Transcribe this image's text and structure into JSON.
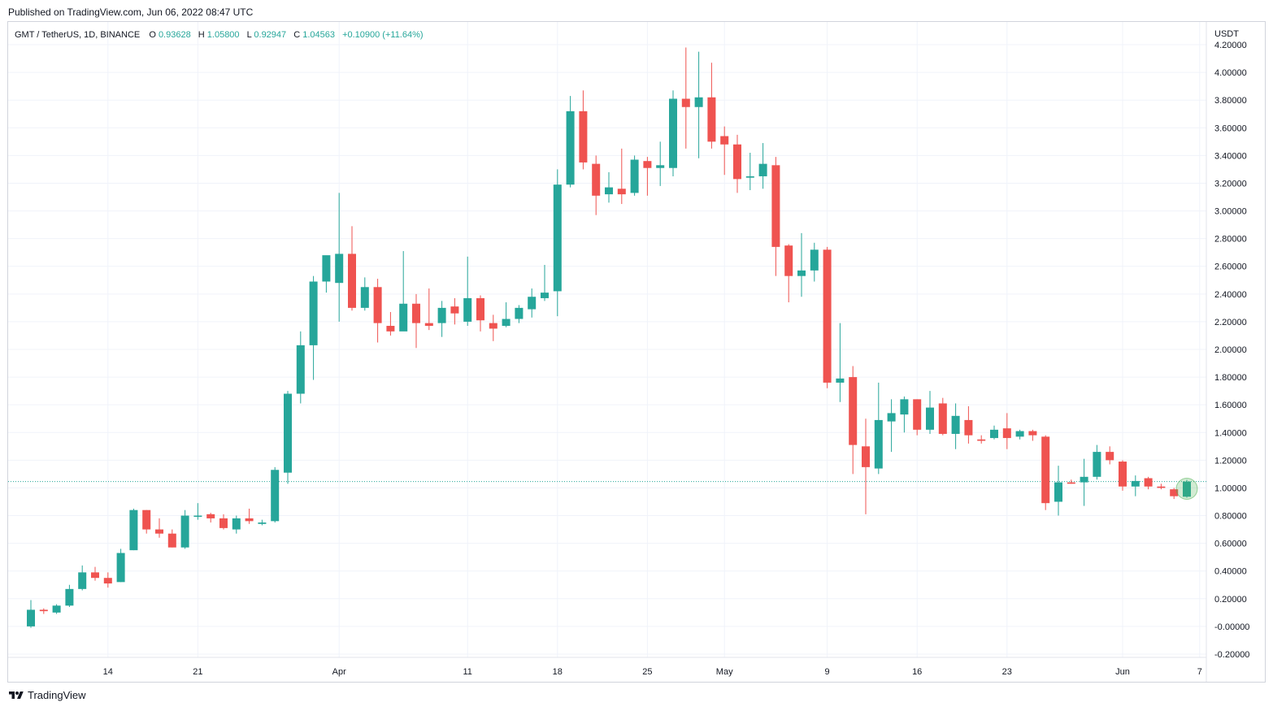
{
  "header": {
    "published": "Published on TradingView.com, Jun 06, 2022 08:47 UTC"
  },
  "legend": {
    "symbol": "GMT / TetherUS, 1D, BINANCE",
    "o_label": "O",
    "o_value": "0.93628",
    "h_label": "H",
    "h_value": "1.05800",
    "l_label": "L",
    "l_value": "0.92947",
    "c_label": "C",
    "c_value": "1.04563",
    "change": "+0.10900 (+11.64%)"
  },
  "footer": {
    "brand": "TradingView"
  },
  "colors": {
    "up": "#26a69a",
    "down": "#ef5350",
    "grid": "#f0f3fa",
    "text": "#131722",
    "highlight": "#4caf50"
  },
  "chart_data": {
    "type": "candlestick",
    "currency_label": "USDT",
    "ylim": [
      -0.3,
      4.3
    ],
    "y_ticks": [
      "4.20000",
      "4.00000",
      "3.80000",
      "3.60000",
      "3.40000",
      "3.20000",
      "3.00000",
      "2.80000",
      "2.60000",
      "2.40000",
      "2.20000",
      "2.00000",
      "1.80000",
      "1.60000",
      "1.40000",
      "1.20000",
      "1.00000",
      "0.80000",
      "0.60000",
      "0.40000",
      "0.20000",
      "-0.00000",
      "-0.20000"
    ],
    "x_ticks": [
      {
        "label": "14",
        "index": 6
      },
      {
        "label": "21",
        "index": 13
      },
      {
        "label": "Apr",
        "index": 24
      },
      {
        "label": "11",
        "index": 34
      },
      {
        "label": "18",
        "index": 41
      },
      {
        "label": "25",
        "index": 48
      },
      {
        "label": "May",
        "index": 54
      },
      {
        "label": "9",
        "index": 62
      },
      {
        "label": "16",
        "index": 69
      },
      {
        "label": "23",
        "index": 76
      },
      {
        "label": "Jun",
        "index": 85
      },
      {
        "label": "7",
        "index": 91
      }
    ],
    "last_price": 1.04563,
    "candles": [
      [
        0.0,
        0.12,
        -0.01,
        0.19
      ],
      [
        0.12,
        0.11,
        0.09,
        0.13
      ],
      [
        0.1,
        0.15,
        0.09,
        0.16
      ],
      [
        0.15,
        0.27,
        0.14,
        0.3
      ],
      [
        0.27,
        0.39,
        0.26,
        0.44
      ],
      [
        0.39,
        0.35,
        0.33,
        0.43
      ],
      [
        0.35,
        0.31,
        0.28,
        0.39
      ],
      [
        0.32,
        0.53,
        0.32,
        0.56
      ],
      [
        0.55,
        0.84,
        0.55,
        0.85
      ],
      [
        0.84,
        0.7,
        0.67,
        0.84
      ],
      [
        0.7,
        0.67,
        0.64,
        0.78
      ],
      [
        0.67,
        0.57,
        0.57,
        0.7
      ],
      [
        0.57,
        0.8,
        0.56,
        0.84
      ],
      [
        0.8,
        0.8,
        0.77,
        0.89
      ],
      [
        0.81,
        0.78,
        0.75,
        0.82
      ],
      [
        0.78,
        0.71,
        0.7,
        0.81
      ],
      [
        0.7,
        0.78,
        0.67,
        0.8
      ],
      [
        0.78,
        0.76,
        0.74,
        0.85
      ],
      [
        0.74,
        0.75,
        0.73,
        0.77
      ],
      [
        0.76,
        1.13,
        0.75,
        1.15
      ],
      [
        1.11,
        1.68,
        1.03,
        1.7
      ],
      [
        1.68,
        2.03,
        1.61,
        2.13
      ],
      [
        2.03,
        2.49,
        1.78,
        2.53
      ],
      [
        2.49,
        2.68,
        2.41,
        2.64
      ],
      [
        2.48,
        2.69,
        2.2,
        3.13
      ],
      [
        2.69,
        2.3,
        2.28,
        2.89
      ],
      [
        2.3,
        2.45,
        2.28,
        2.52
      ],
      [
        2.45,
        2.19,
        2.05,
        2.51
      ],
      [
        2.17,
        2.13,
        2.1,
        2.27
      ],
      [
        2.13,
        2.33,
        2.14,
        2.71
      ],
      [
        2.33,
        2.19,
        2.01,
        2.4
      ],
      [
        2.19,
        2.17,
        2.14,
        2.44
      ],
      [
        2.19,
        2.3,
        2.09,
        2.35
      ],
      [
        2.31,
        2.26,
        2.18,
        2.37
      ],
      [
        2.2,
        2.37,
        2.17,
        2.67
      ],
      [
        2.37,
        2.21,
        2.13,
        2.39
      ],
      [
        2.19,
        2.15,
        2.06,
        2.25
      ],
      [
        2.17,
        2.22,
        2.16,
        2.34
      ],
      [
        2.22,
        2.3,
        2.19,
        2.32
      ],
      [
        2.29,
        2.38,
        2.23,
        2.44
      ],
      [
        2.37,
        2.41,
        2.35,
        2.61
      ],
      [
        2.42,
        3.19,
        2.24,
        3.3
      ],
      [
        3.19,
        3.72,
        3.17,
        3.83
      ],
      [
        3.72,
        3.35,
        3.3,
        3.87
      ],
      [
        3.34,
        3.11,
        2.97,
        3.4
      ],
      [
        3.12,
        3.17,
        3.06,
        3.28
      ],
      [
        3.16,
        3.12,
        3.05,
        3.45
      ],
      [
        3.13,
        3.37,
        3.11,
        3.4
      ],
      [
        3.36,
        3.31,
        3.11,
        3.39
      ],
      [
        3.31,
        3.33,
        3.18,
        3.5
      ],
      [
        3.31,
        3.81,
        3.25,
        3.87
      ],
      [
        3.81,
        3.75,
        3.45,
        4.18
      ],
      [
        3.75,
        3.82,
        3.38,
        4.15
      ],
      [
        3.82,
        3.5,
        3.45,
        4.07
      ],
      [
        3.54,
        3.48,
        3.26,
        3.61
      ],
      [
        3.48,
        3.23,
        3.13,
        3.55
      ],
      [
        3.24,
        3.25,
        3.15,
        3.42
      ],
      [
        3.25,
        3.34,
        3.16,
        3.49
      ],
      [
        3.33,
        2.74,
        2.53,
        3.39
      ],
      [
        2.75,
        2.53,
        2.34,
        2.76
      ],
      [
        2.53,
        2.57,
        2.38,
        2.84
      ],
      [
        2.57,
        2.72,
        2.49,
        2.77
      ],
      [
        2.72,
        1.76,
        1.72,
        2.74
      ],
      [
        1.76,
        1.79,
        1.62,
        2.19
      ],
      [
        1.8,
        1.31,
        1.1,
        1.88
      ],
      [
        1.3,
        1.15,
        0.81,
        1.5
      ],
      [
        1.14,
        1.49,
        1.1,
        1.76
      ],
      [
        1.48,
        1.54,
        1.26,
        1.64
      ],
      [
        1.53,
        1.64,
        1.4,
        1.66
      ],
      [
        1.64,
        1.42,
        1.38,
        1.64
      ],
      [
        1.42,
        1.58,
        1.39,
        1.7
      ],
      [
        1.61,
        1.39,
        1.38,
        1.65
      ],
      [
        1.39,
        1.52,
        1.28,
        1.61
      ],
      [
        1.49,
        1.38,
        1.32,
        1.59
      ],
      [
        1.35,
        1.34,
        1.32,
        1.38
      ],
      [
        1.36,
        1.42,
        1.35,
        1.45
      ],
      [
        1.43,
        1.36,
        1.28,
        1.54
      ],
      [
        1.37,
        1.41,
        1.35,
        1.42
      ],
      [
        1.41,
        1.38,
        1.34,
        1.42
      ],
      [
        1.37,
        0.89,
        0.84,
        1.38
      ],
      [
        0.9,
        1.04,
        0.8,
        1.16
      ],
      [
        1.04,
        1.03,
        1.03,
        1.06
      ],
      [
        1.04,
        1.08,
        0.87,
        1.21
      ],
      [
        1.08,
        1.26,
        1.06,
        1.31
      ],
      [
        1.26,
        1.2,
        1.17,
        1.3
      ],
      [
        1.19,
        1.01,
        0.98,
        1.2
      ],
      [
        1.01,
        1.05,
        0.94,
        1.09
      ],
      [
        1.07,
        1.01,
        0.99,
        1.08
      ],
      [
        1.01,
        1.0,
        0.99,
        1.03
      ],
      [
        0.99,
        0.94,
        0.92,
        1.0
      ],
      [
        0.93628,
        1.04563,
        0.92947,
        1.058
      ]
    ]
  }
}
